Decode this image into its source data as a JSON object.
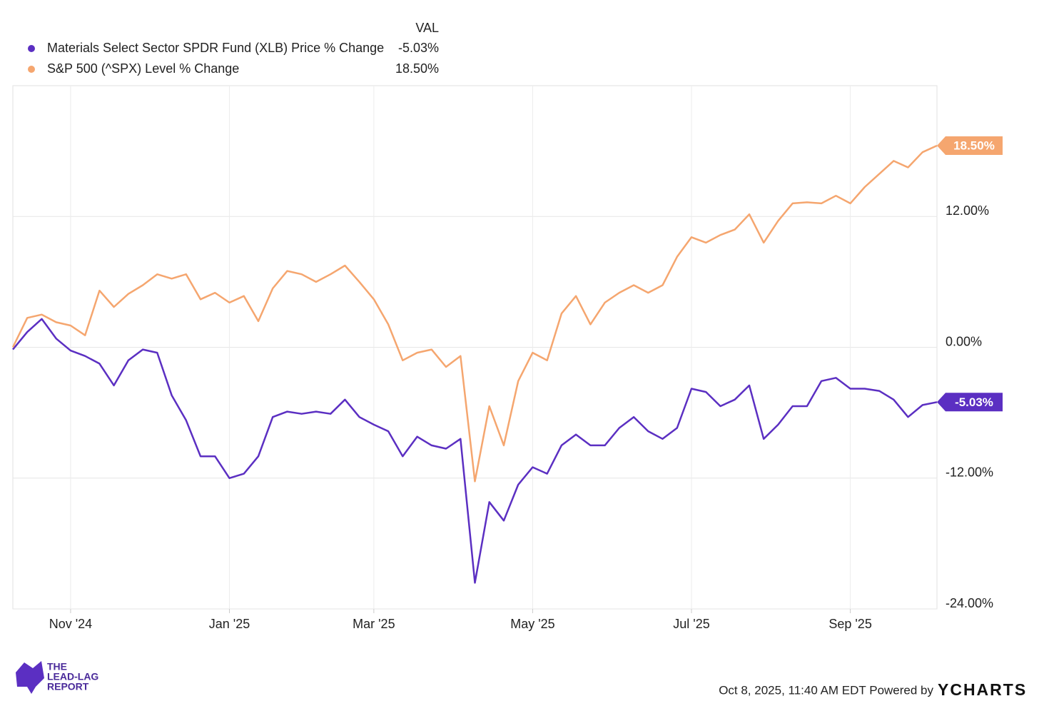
{
  "chart_data": {
    "type": "line",
    "legend_header": "VAL",
    "categories": [
      null,
      null,
      null,
      null,
      "Nov '24",
      null,
      null,
      null,
      null,
      null,
      null,
      null,
      null,
      null,
      null,
      "Jan '25",
      null,
      null,
      null,
      null,
      null,
      null,
      null,
      null,
      null,
      "Mar '25",
      null,
      null,
      null,
      null,
      null,
      null,
      null,
      null,
      null,
      null,
      "May '25",
      null,
      null,
      null,
      null,
      null,
      null,
      null,
      null,
      null,
      null,
      "Jul '25",
      null,
      null,
      null,
      null,
      null,
      null,
      null,
      null,
      null,
      null,
      "Sep '25",
      null,
      null,
      null,
      null,
      null,
      null
    ],
    "series": [
      {
        "name": "Materials Select Sector SPDR Fund (XLB) Price % Change",
        "color": "#5b2fc2",
        "values": [
          -0.2,
          1.4,
          2.6,
          0.8,
          -0.3,
          -0.8,
          -1.5,
          -3.5,
          -1.2,
          -0.2,
          -0.5,
          -4.4,
          -6.7,
          -10.0,
          -10.0,
          -12.0,
          -11.6,
          -10.0,
          -6.4,
          -5.9,
          -6.1,
          -5.9,
          -6.1,
          -4.8,
          -6.4,
          -7.1,
          -7.7,
          -10.0,
          -8.2,
          -9.0,
          -9.3,
          -8.4,
          -21.6,
          -14.2,
          -15.9,
          -12.6,
          -11.0,
          -11.6,
          -9.0,
          -8.0,
          -9.0,
          -9.0,
          -7.4,
          -6.4,
          -7.7,
          -8.4,
          -7.4,
          -3.8,
          -4.1,
          -5.4,
          -4.8,
          -3.5,
          -8.4,
          -7.1,
          -5.4,
          -5.4,
          -3.1,
          -2.8,
          -3.8,
          -3.8,
          -4.0,
          -4.8,
          -6.4,
          -5.3,
          -5.03
        ],
        "value_labels": [
          null,
          null,
          null,
          null,
          null,
          null,
          null,
          null,
          null,
          null,
          null,
          null,
          null,
          null,
          null,
          null,
          null,
          null,
          null,
          null,
          null,
          null,
          null,
          null,
          null,
          null,
          null,
          null,
          null,
          null,
          null,
          null,
          null,
          null,
          null,
          null,
          null,
          null,
          null,
          null,
          null,
          null,
          null,
          null,
          null,
          null,
          null,
          null,
          null,
          null,
          null,
          null,
          null,
          null,
          null,
          null,
          null,
          null,
          null,
          null,
          null,
          null,
          null,
          null,
          "-5.03%"
        ]
      },
      {
        "name": "S&P 500 (^SPX) Level % Change",
        "color": "#f5a66f",
        "values": [
          0,
          2.7,
          3.0,
          2.3,
          2.0,
          1.1,
          5.2,
          3.7,
          4.9,
          5.7,
          6.7,
          6.3,
          6.7,
          4.4,
          5.0,
          4.1,
          4.7,
          2.4,
          5.4,
          7.0,
          6.7,
          6.0,
          6.7,
          7.5,
          6.0,
          4.4,
          2.1,
          -1.2,
          -0.5,
          -0.2,
          -1.8,
          -0.8,
          -12.3,
          -5.4,
          -9.0,
          -3.1,
          -0.5,
          -1.2,
          3.1,
          4.7,
          2.1,
          4.1,
          5.0,
          5.7,
          5.0,
          5.7,
          8.3,
          10.1,
          9.6,
          10.3,
          10.8,
          12.2,
          9.6,
          11.6,
          13.2,
          13.3,
          13.2,
          13.9,
          13.2,
          14.7,
          15.9,
          17.1,
          16.5,
          17.9,
          18.5
        ],
        "value_labels": [
          null,
          null,
          null,
          null,
          null,
          null,
          null,
          null,
          null,
          null,
          null,
          null,
          null,
          null,
          null,
          null,
          null,
          null,
          null,
          null,
          null,
          null,
          null,
          null,
          null,
          null,
          null,
          null,
          null,
          null,
          null,
          null,
          null,
          null,
          null,
          null,
          null,
          null,
          null,
          null,
          null,
          null,
          null,
          null,
          null,
          null,
          null,
          null,
          null,
          null,
          null,
          null,
          null,
          null,
          null,
          null,
          null,
          null,
          null,
          null,
          null,
          null,
          null,
          null,
          "18.50%"
        ]
      }
    ],
    "ylim": [
      -24,
      24
    ],
    "yticks": [
      {
        "value": -24,
        "label": "-24.00%"
      },
      {
        "value": -12,
        "label": "-12.00%"
      },
      {
        "value": 0,
        "label": "0.00%"
      },
      {
        "value": 12,
        "label": "12.00%"
      }
    ],
    "grid": true,
    "timestamp": "Oct 8, 2025, 11:40 AM EDT Powered by",
    "brand": "YCHARTS",
    "logo_lines": [
      "THE",
      "LEAD-LAG",
      "REPORT"
    ]
  }
}
